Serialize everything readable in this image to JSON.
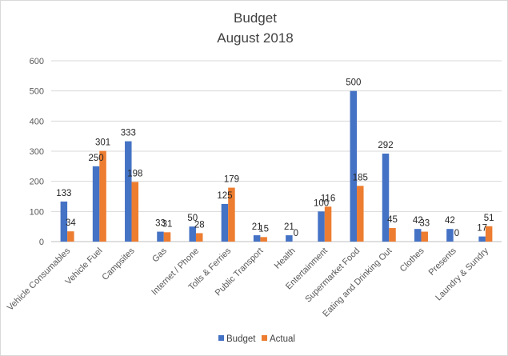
{
  "chart_data": {
    "type": "bar",
    "title": [
      "Budget",
      "August 2018"
    ],
    "categories": [
      "Vehicle Consumables",
      "Vehicle Fuel",
      "Campsites",
      "Gas",
      "Internet / Phone",
      "Tolls & Ferries",
      "Public Transport",
      "Health",
      "Entertainment",
      "Supermarket Food",
      "Eating and Drinking Out",
      "Clothes",
      "Presents",
      "Laundry & Sundry"
    ],
    "series": [
      {
        "name": "Budget",
        "color": "#4472c4",
        "values": [
          133,
          250,
          333,
          33,
          50,
          125,
          21,
          21,
          100,
          500,
          292,
          42,
          42,
          17
        ]
      },
      {
        "name": "Actual",
        "color": "#ed7d31",
        "values": [
          34,
          301,
          198,
          31,
          28,
          179,
          15,
          0,
          116,
          185,
          45,
          33,
          0,
          51
        ]
      }
    ],
    "yticks": [
      0,
      100,
      200,
      300,
      400,
      500,
      600
    ],
    "ylim": [
      0,
      600
    ],
    "xlabel": "",
    "ylabel": "",
    "grid": true,
    "legend": "bottom"
  }
}
